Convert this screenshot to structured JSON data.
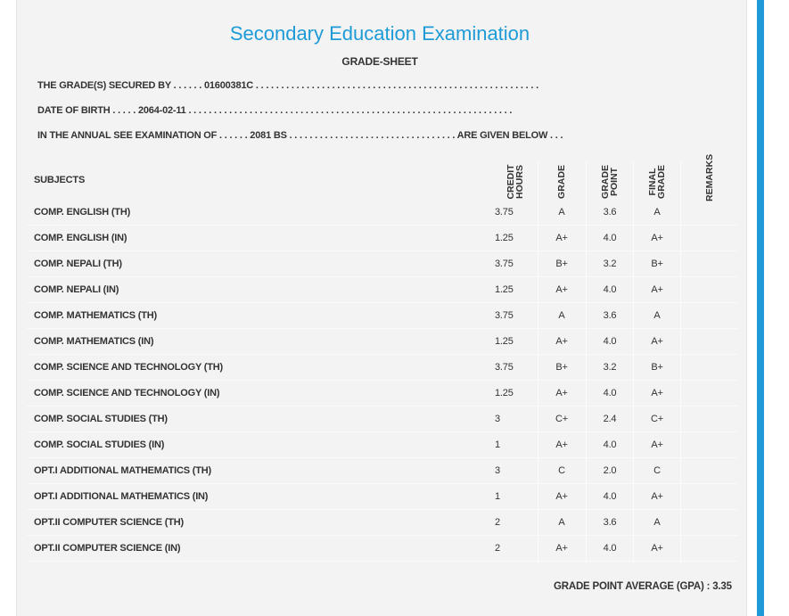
{
  "header": {
    "title": "Secondary Education Examination",
    "subtitle": "GRADE-SHEET"
  },
  "info": [
    "THE GRADE(S) SECURED BY . . . . . . 01600381C . . . . . . . . . . . . . . . . . . . . . . . . . . . . . . . . . . . . . . . . . . . . . . . . . . . . . . . .",
    "DATE OF BIRTH . . . . . 2064-02-11 . . . . . . . . . . . . . . . . . . . . . . . . . . . . . . . . . . . . . . . . . . . . . . . . . . . . . . . . . . . . . . . .",
    "IN THE ANNUAL SEE EXAMINATION OF . . . . . . 2081 BS . . . . . . . . . . . . . . . . . . . . . . . . . . . . . . . . . ARE GIVEN BELOW . . ."
  ],
  "table": {
    "headers": [
      "SUBJECTS",
      "CREDIT HOURS",
      "GRADE",
      "GRADE POINT",
      "FINAL GRADE",
      "REMARKS"
    ],
    "rows": [
      [
        "COMP. ENGLISH (TH)",
        "3.75",
        "A",
        "3.6",
        "A"
      ],
      [
        "COMP. ENGLISH (IN)",
        "1.25",
        "A+",
        "4.0",
        "A+"
      ],
      [
        "COMP. NEPALI (TH)",
        "3.75",
        "B+",
        "3.2",
        "B+"
      ],
      [
        "COMP. NEPALI (IN)",
        "1.25",
        "A+",
        "4.0",
        "A+"
      ],
      [
        "COMP. MATHEMATICS (TH)",
        "3.75",
        "A",
        "3.6",
        "A"
      ],
      [
        "COMP. MATHEMATICS (IN)",
        "1.25",
        "A+",
        "4.0",
        "A+"
      ],
      [
        "COMP. SCIENCE AND TECHNOLOGY (TH)",
        "3.75",
        "B+",
        "3.2",
        "B+"
      ],
      [
        "COMP. SCIENCE AND TECHNOLOGY (IN)",
        "1.25",
        "A+",
        "4.0",
        "A+"
      ],
      [
        "COMP. SOCIAL STUDIES (TH)",
        "3",
        "C+",
        "2.4",
        "C+"
      ],
      [
        "COMP. SOCIAL STUDIES (IN)",
        "1",
        "A+",
        "4.0",
        "A+"
      ],
      [
        "OPT.I ADDITIONAL MATHEMATICS (TH)",
        "3",
        "C",
        "2.0",
        "C"
      ],
      [
        "OPT.I ADDITIONAL MATHEMATICS (IN)",
        "1",
        "A+",
        "4.0",
        "A+"
      ],
      [
        "OPT.II COMPUTER SCIENCE (TH)",
        "2",
        "A",
        "3.6",
        "A"
      ],
      [
        "OPT.II COMPUTER SCIENCE (IN)",
        "2",
        "A+",
        "4.0",
        "A+"
      ]
    ]
  },
  "footer": "GRADE POINT AVERAGE (GPA) : 3.35"
}
